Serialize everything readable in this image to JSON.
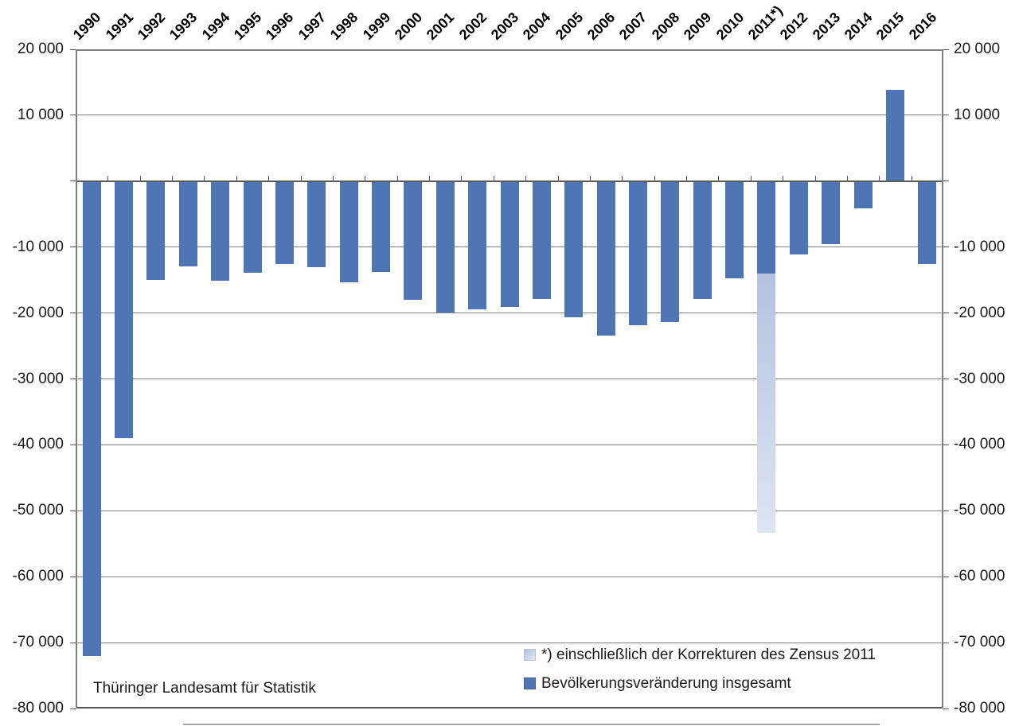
{
  "chart_data": {
    "type": "bar",
    "title": "",
    "source": "Thüringer Landesamt für Statistik",
    "categories": [
      "1990",
      "1991",
      "1992",
      "1993",
      "1994",
      "1995",
      "1996",
      "1997",
      "1998",
      "1999",
      "2000",
      "2001",
      "2002",
      "2003",
      "2004",
      "2005",
      "2006",
      "2007",
      "2008",
      "2009",
      "2010",
      "2011*)",
      "2012",
      "2013",
      "2014",
      "2015",
      "2016"
    ],
    "values": [
      -72000,
      -39000,
      -15000,
      -12900,
      -15100,
      -13900,
      -12600,
      -13000,
      -15300,
      -13750,
      -18000,
      -19900,
      -19400,
      -19100,
      -17900,
      -20700,
      -23400,
      -21900,
      -21400,
      -17900,
      -14800,
      -53400,
      -11100,
      -9600,
      -4100,
      13900,
      -12600
    ],
    "ylim": [
      -80000,
      20000
    ],
    "ytick_step": 10000,
    "yticks": [
      {
        "value": 20000,
        "label": "20 000"
      },
      {
        "value": 10000,
        "label": "10 000"
      },
      {
        "value": 0,
        "label": ""
      },
      {
        "value": -10000,
        "label": "-10 000"
      },
      {
        "value": -20000,
        "label": "-20 000"
      },
      {
        "value": -30000,
        "label": "-30 000"
      },
      {
        "value": -40000,
        "label": "-40 000"
      },
      {
        "value": -50000,
        "label": "-50 000"
      },
      {
        "value": -60000,
        "label": "-60 000"
      },
      {
        "value": -70000,
        "label": "-70 000"
      },
      {
        "value": -80000,
        "label": "-80 000"
      }
    ],
    "zensus": {
      "category": "2011*)",
      "dark_until": -14000,
      "note": "*) einschließlich der Korrekturen des Zensus 2011"
    },
    "legend": [
      {
        "label": "*) einschließlich der Korrekturen des Zensus 2011",
        "swatch": "light"
      },
      {
        "label": "Bevölkerungsveränderung insgesamt",
        "swatch": "dark"
      }
    ],
    "legend_position": "bottom-right-inside",
    "grid": true,
    "x_labels_position": "top-rotated-45",
    "colors": {
      "bar_dark": "#4e76b4",
      "bar_light_top": "#b3c2e0",
      "bar_light_bottom": "#dde4f2",
      "grid": "#808080",
      "axis": "#595959",
      "text": "#1a1a1a"
    }
  }
}
